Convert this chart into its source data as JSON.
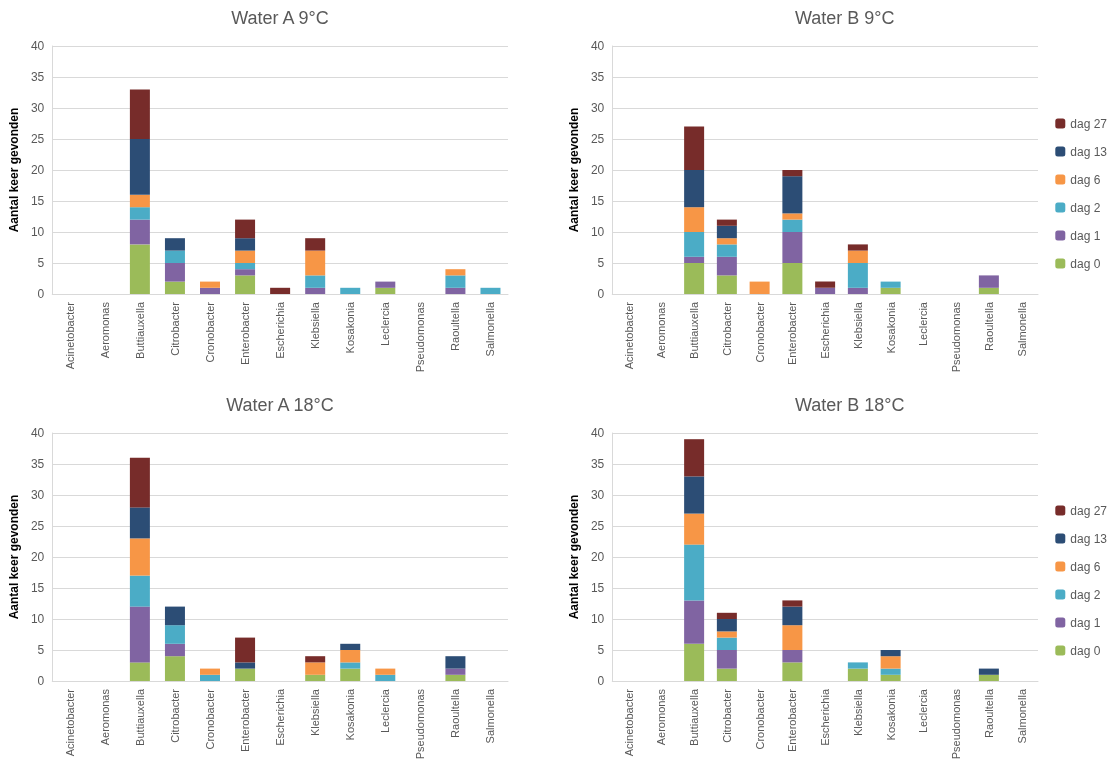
{
  "chart_data": [
    {
      "type": "bar",
      "title": "Water A 9°C",
      "ylabel": "Aantal keer gevonden",
      "stacked": true,
      "grid": "y",
      "legend": false,
      "categories": [
        "Acinetobacter",
        "Aeromonas",
        "Buttiauxella",
        "Citrobacter",
        "Cronobacter",
        "Enterobacter",
        "Escherichia",
        "Klebsiella",
        "Kosakonia",
        "Leclercia",
        "Pseudomonas",
        "Raoultella",
        "Salmonella"
      ],
      "ylim": [
        0,
        40
      ],
      "yticks": [
        0,
        5,
        10,
        15,
        20,
        25,
        30,
        35,
        40
      ],
      "series": [
        {
          "color": "#9bbb59",
          "values": [
            0,
            0,
            8,
            2,
            0,
            3,
            0,
            0,
            0,
            1,
            0,
            0,
            0
          ]
        },
        {
          "color": "#8064a2",
          "values": [
            0,
            0,
            4,
            3,
            1,
            1,
            0,
            1,
            0,
            1,
            0,
            1,
            0
          ]
        },
        {
          "color": "#4bacc6",
          "values": [
            0,
            0,
            2,
            2,
            0,
            1,
            0,
            2,
            1,
            0,
            0,
            2,
            1
          ]
        },
        {
          "color": "#f79646",
          "values": [
            0,
            0,
            2,
            0,
            1,
            2,
            0,
            4,
            0,
            0,
            0,
            1,
            0
          ]
        },
        {
          "color": "#2c4d75",
          "values": [
            0,
            0,
            9,
            2,
            0,
            2,
            0,
            0,
            0,
            0,
            0,
            0,
            0
          ]
        },
        {
          "color": "#772c2a",
          "values": [
            0,
            0,
            8,
            0,
            0,
            3,
            1,
            2,
            0,
            0,
            0,
            0,
            0
          ]
        }
      ]
    },
    {
      "type": "bar",
      "title": "Water B 9°C",
      "ylabel": "Aantal keer gevonden",
      "stacked": true,
      "grid": "y",
      "legend": "right",
      "categories": [
        "Acinetobacter",
        "Aeromonas",
        "Buttiauxella",
        "Citrobacter",
        "Cronobacter",
        "Enterobacter",
        "Escherichia",
        "Klebsiella",
        "Kosakonia",
        "Leclercia",
        "Pseudomonas",
        "Raoultella",
        "Salmonella"
      ],
      "ylim": [
        0,
        40
      ],
      "yticks": [
        0,
        5,
        10,
        15,
        20,
        25,
        30,
        35,
        40
      ],
      "series": [
        {
          "name": "dag 0",
          "color": "#9bbb59",
          "values": [
            0,
            0,
            5,
            3,
            0,
            5,
            0,
            0,
            1,
            0,
            0,
            1,
            0
          ]
        },
        {
          "name": "dag 1",
          "color": "#8064a2",
          "values": [
            0,
            0,
            1,
            3,
            0,
            5,
            1,
            1,
            0,
            0,
            0,
            2,
            0
          ]
        },
        {
          "name": "dag 2",
          "color": "#4bacc6",
          "values": [
            0,
            0,
            4,
            2,
            0,
            2,
            0,
            4,
            1,
            0,
            0,
            0,
            0
          ]
        },
        {
          "name": "dag 6",
          "color": "#f79646",
          "values": [
            0,
            0,
            4,
            1,
            2,
            1,
            0,
            2,
            0,
            0,
            0,
            0,
            0
          ]
        },
        {
          "name": "dag 13",
          "color": "#2c4d75",
          "values": [
            0,
            0,
            6,
            2,
            0,
            6,
            0,
            0,
            0,
            0,
            0,
            0,
            0
          ]
        },
        {
          "name": "dag 27",
          "color": "#772c2a",
          "values": [
            0,
            0,
            7,
            1,
            0,
            1,
            1,
            1,
            0,
            0,
            0,
            0,
            0
          ]
        }
      ]
    },
    {
      "type": "bar",
      "title": "Water A 18°C",
      "ylabel": "Aantal keer gevonden",
      "stacked": true,
      "grid": "y",
      "legend": false,
      "categories": [
        "Acinetobacter",
        "Aeromonas",
        "Buttiauxella",
        "Citrobacter",
        "Cronobacter",
        "Enterobacter",
        "Escherichia",
        "Klebsiella",
        "Kosakonia",
        "Leclercia",
        "Pseudomonas",
        "Raoultella",
        "Salmonella"
      ],
      "ylim": [
        0,
        40
      ],
      "yticks": [
        0,
        5,
        10,
        15,
        20,
        25,
        30,
        35,
        40
      ],
      "series": [
        {
          "color": "#9bbb59",
          "values": [
            0,
            0,
            3,
            4,
            0,
            2,
            0,
            1,
            2,
            0,
            0,
            1,
            0
          ]
        },
        {
          "color": "#8064a2",
          "values": [
            0,
            0,
            9,
            2,
            0,
            0,
            0,
            0,
            0,
            0,
            0,
            1,
            0
          ]
        },
        {
          "color": "#4bacc6",
          "values": [
            0,
            0,
            5,
            3,
            1,
            0,
            0,
            0,
            1,
            1,
            0,
            0,
            0
          ]
        },
        {
          "color": "#f79646",
          "values": [
            0,
            0,
            6,
            0,
            1,
            0,
            0,
            2,
            2,
            1,
            0,
            0,
            0
          ]
        },
        {
          "color": "#2c4d75",
          "values": [
            0,
            0,
            5,
            3,
            0,
            1,
            0,
            0,
            1,
            0,
            0,
            2,
            0
          ]
        },
        {
          "color": "#772c2a",
          "values": [
            0,
            0,
            8,
            0,
            0,
            4,
            0,
            1,
            0,
            0,
            0,
            0,
            0
          ]
        }
      ]
    },
    {
      "type": "bar",
      "title": "Water B 18°C",
      "ylabel": "Aantal keer gevonden",
      "stacked": true,
      "grid": "y",
      "legend": "right",
      "categories": [
        "Acinetobacter",
        "Aeromonas",
        "Buttiauxella",
        "Citrobacter",
        "Cronobacter",
        "Enterobacter",
        "Escherichia",
        "Klebsiella",
        "Kosakonia",
        "Leclercia",
        "Pseudomonas",
        "Raoultella",
        "Salmonella"
      ],
      "ylim": [
        0,
        40
      ],
      "yticks": [
        0,
        5,
        10,
        15,
        20,
        25,
        30,
        35,
        40
      ],
      "series": [
        {
          "name": "dag 0",
          "color": "#9bbb59",
          "values": [
            0,
            0,
            6,
            2,
            0,
            3,
            0,
            2,
            1,
            0,
            0,
            1,
            0
          ]
        },
        {
          "name": "dag 1",
          "color": "#8064a2",
          "values": [
            0,
            0,
            7,
            3,
            0,
            2,
            0,
            0,
            0,
            0,
            0,
            0,
            0
          ]
        },
        {
          "name": "dag 2",
          "color": "#4bacc6",
          "values": [
            0,
            0,
            9,
            2,
            0,
            0,
            0,
            1,
            1,
            0,
            0,
            0,
            0
          ]
        },
        {
          "name": "dag 6",
          "color": "#f79646",
          "values": [
            0,
            0,
            5,
            1,
            0,
            4,
            0,
            0,
            2,
            0,
            0,
            0,
            0
          ]
        },
        {
          "name": "dag 13",
          "color": "#2c4d75",
          "values": [
            0,
            0,
            6,
            2,
            0,
            3,
            0,
            0,
            1,
            0,
            0,
            1,
            0
          ]
        },
        {
          "name": "dag 27",
          "color": "#772c2a",
          "values": [
            0,
            0,
            6,
            1,
            0,
            1,
            0,
            0,
            0,
            0,
            0,
            0,
            0
          ]
        }
      ]
    }
  ]
}
